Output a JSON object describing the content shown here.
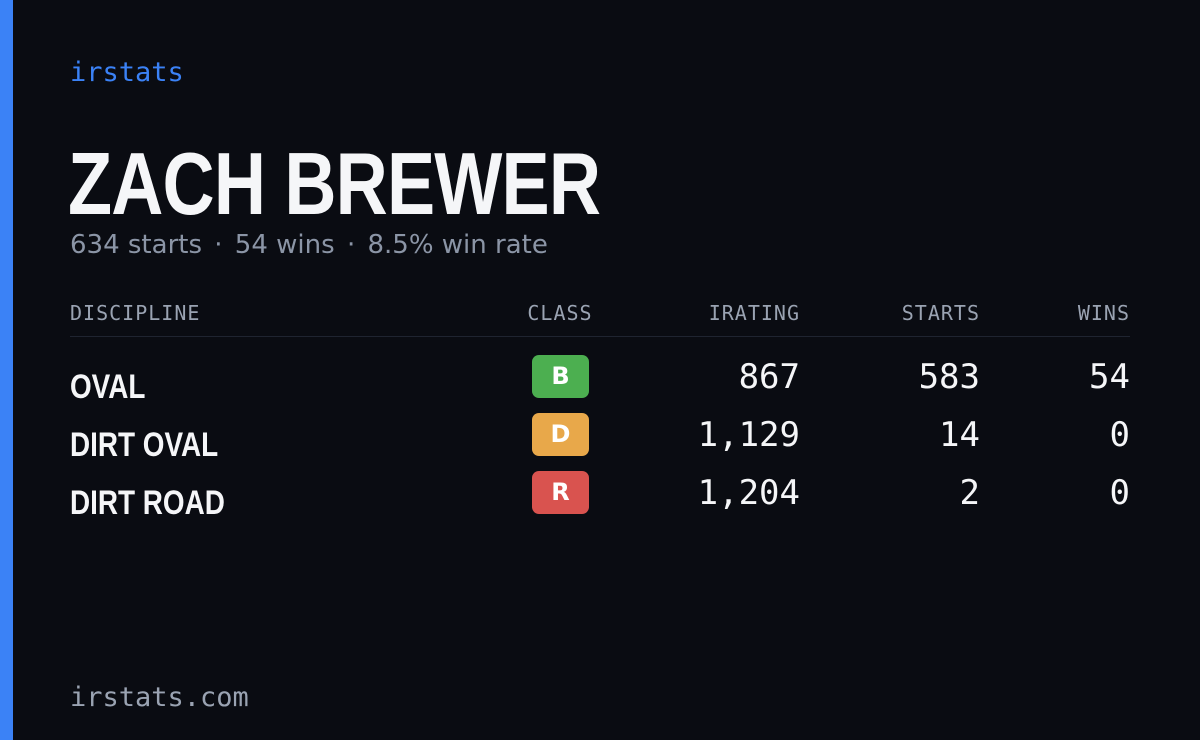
{
  "brand": "irstats",
  "driver": {
    "name": "ZACH BREWER",
    "starts_text": "634 starts",
    "wins_text": "54 wins",
    "win_rate_text": "8.5% win rate",
    "separator": "·"
  },
  "table": {
    "headers": {
      "discipline": "DISCIPLINE",
      "class": "CLASS",
      "irating": "IRATING",
      "starts": "STARTS",
      "wins": "WINS"
    },
    "rows": [
      {
        "discipline": "OVAL",
        "class": "B",
        "class_color": "#4caf50",
        "irating": "867",
        "starts": "583",
        "wins": "54"
      },
      {
        "discipline": "DIRT OVAL",
        "class": "D",
        "class_color": "#e8a84a",
        "irating": "1,129",
        "starts": "14",
        "wins": "0"
      },
      {
        "discipline": "DIRT ROAD",
        "class": "R",
        "class_color": "#d9534f",
        "irating": "1,204",
        "starts": "2",
        "wins": "0"
      }
    ]
  },
  "footer": "irstats.com",
  "colors": {
    "accent": "#3b82f6",
    "background": "#0a0c12"
  }
}
